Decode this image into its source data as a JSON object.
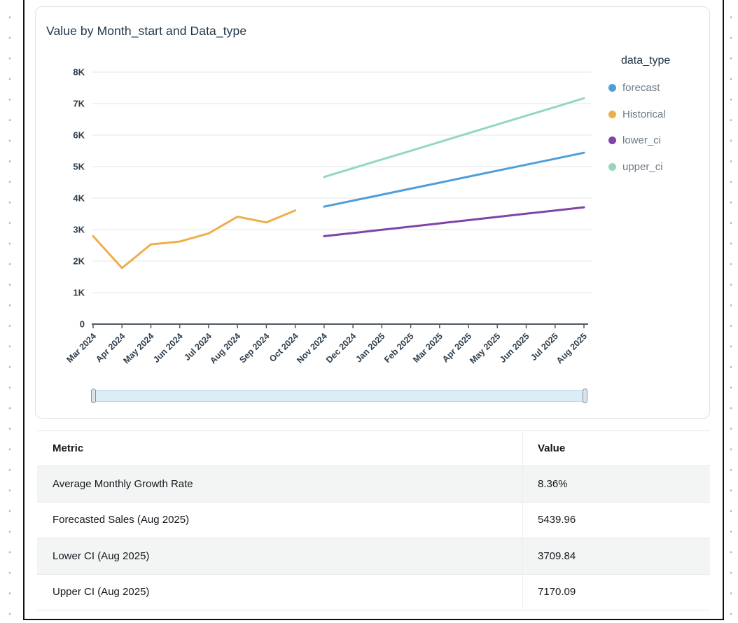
{
  "visual": {
    "title": "Value by Month_start and Data_type"
  },
  "chart_data": {
    "type": "line",
    "title": "Value by Month_start and Data_type",
    "legend_title": "data_type",
    "legend_position": "right",
    "grid": true,
    "xlabel": "",
    "ylabel": "",
    "ylim": [
      0,
      8000
    ],
    "y_tick_labels": [
      "0",
      "1K",
      "2K",
      "3K",
      "4K",
      "5K",
      "6K",
      "7K",
      "8K"
    ],
    "x_categories": [
      "Mar 2024",
      "Apr 2024",
      "May 2024",
      "Jun 2024",
      "Jul 2024",
      "Aug 2024",
      "Sep 2024",
      "Oct 2024",
      "Nov 2024",
      "Dec 2024",
      "Jan 2025",
      "Feb 2025",
      "Mar 2025",
      "Apr 2025",
      "May 2025",
      "Jun 2025",
      "Jul 2025",
      "Aug 2025"
    ],
    "series": [
      {
        "name": "forecast",
        "color": "#4f9ed9",
        "start_index": 8,
        "values": [
          3730,
          3920,
          4110,
          4300,
          4490,
          4680,
          4870,
          5060,
          5250,
          5439.96
        ]
      },
      {
        "name": "Historical",
        "color": "#f0ae4a",
        "start_index": 0,
        "values": [
          2790,
          1780,
          2530,
          2620,
          2880,
          3410,
          3230,
          3610
        ]
      },
      {
        "name": "lower_ci",
        "color": "#7d44ab",
        "start_index": 8,
        "values": [
          2790,
          2892,
          2994,
          3096,
          3198,
          3301,
          3403,
          3505,
          3607,
          3709.84
        ]
      },
      {
        "name": "upper_ci",
        "color": "#93d9b9",
        "start_index": 8,
        "values": [
          4670,
          4948,
          5226,
          5503,
          5781,
          6059,
          6337,
          6615,
          6892,
          7170.09
        ]
      }
    ]
  },
  "table": {
    "columns": [
      "Metric",
      "Value"
    ],
    "rows": [
      {
        "metric": "Average Monthly Growth Rate",
        "value": "8.36%"
      },
      {
        "metric": "Forecasted Sales (Aug 2025)",
        "value": "5439.96"
      },
      {
        "metric": "Lower CI (Aug 2025)",
        "value": "3709.84"
      },
      {
        "metric": "Upper CI (Aug 2025)",
        "value": "7170.09"
      }
    ]
  },
  "colors": {
    "title_text": "#1e3448",
    "axis_text": "#2e3e4c",
    "axis_line": "#4d5966",
    "gridline": "#eaebec",
    "legend_label_text": "#6e7b87",
    "slider_track": "#ddedf7",
    "table_alt_row": "#f3f4f4"
  }
}
